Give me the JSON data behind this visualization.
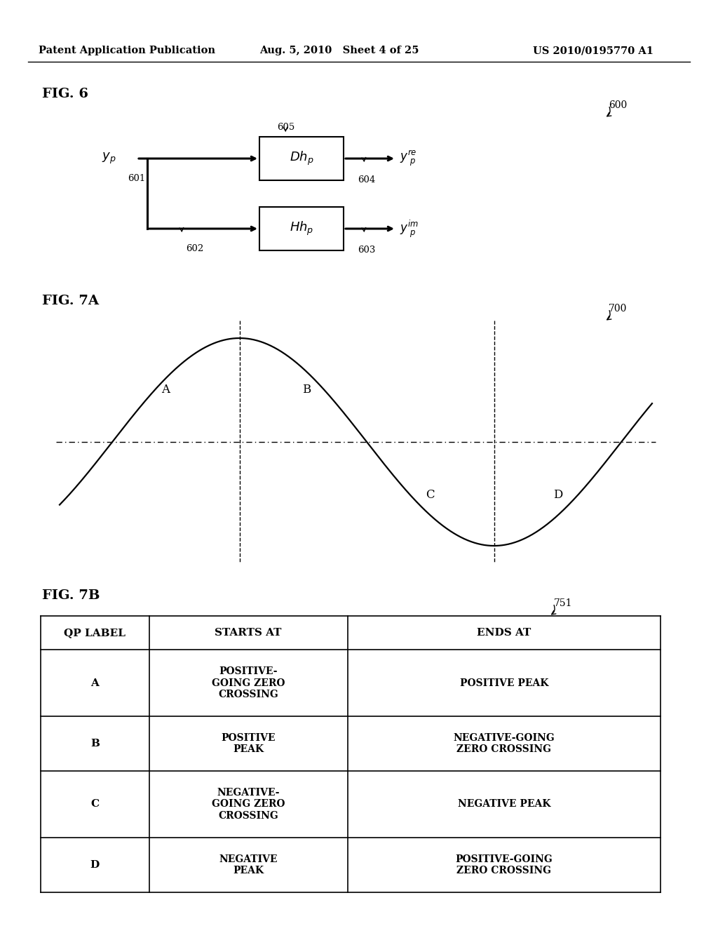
{
  "header_left": "Patent Application Publication",
  "header_mid": "Aug. 5, 2010   Sheet 4 of 25",
  "header_right": "US 2010/0195770 A1",
  "fig6_label": "FIG. 6",
  "fig6_ref": "600",
  "fig7a_label": "FIG. 7A",
  "fig7a_ref": "700",
  "fig7b_label": "FIG. 7B",
  "fig7b_ref": "751",
  "table_headers": [
    "QP LABEL",
    "STARTS AT",
    "ENDS AT"
  ],
  "table_rows": [
    [
      "A",
      "POSITIVE-\nGOING ZERO\nCROSSING",
      "POSITIVE PEAK"
    ],
    [
      "B",
      "POSITIVE\nPEAK",
      "NEGATIVE-GOING\nZERO CROSSING"
    ],
    [
      "C",
      "NEGATIVE-\nGOING ZERO\nCROSSING",
      "NEGATIVE PEAK"
    ],
    [
      "D",
      "NEGATIVE\nPEAK",
      "POSITIVE-GOING\nZERO CROSSING"
    ]
  ],
  "bg_color": "#ffffff",
  "text_color": "#000000"
}
